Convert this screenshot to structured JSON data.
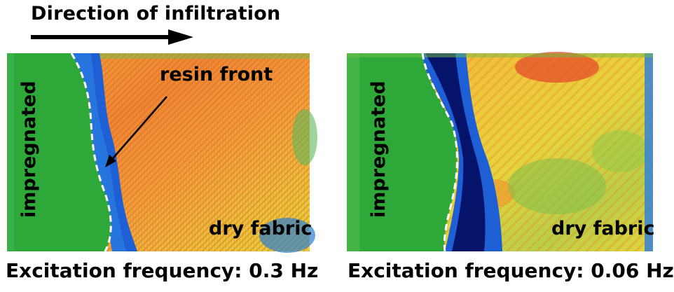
{
  "header": {
    "direction_label": "Direction of infiltration"
  },
  "panel_left": {
    "impregnated_label": "impregnated",
    "resin_label": "resin front",
    "dry_label": "dry fabric",
    "caption": "Excitation frequency: 0.3 Hz"
  },
  "panel_right": {
    "impregnated_label": "impregnated",
    "dry_label": "dry fabric",
    "caption": "Excitation frequency: 0.06 Hz"
  },
  "colors": {
    "impregnated": "#2fa83a",
    "front_blue": "#1f5fd6",
    "front_dark": "#06136a",
    "dry_orange": "#f29a2e",
    "dry_yellow": "#e9d23a",
    "dry_red": "#e4452a",
    "boundary": "#ffffff"
  }
}
